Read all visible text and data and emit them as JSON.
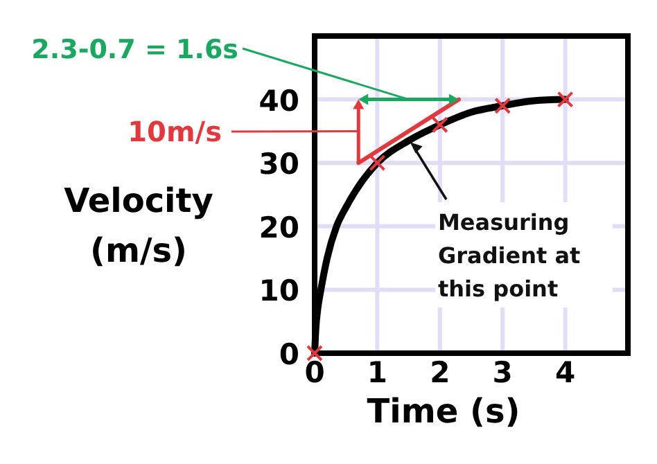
{
  "chart_data": {
    "type": "line",
    "xlabel": "Time (s)",
    "ylabel": "Velocity (m/s)",
    "xlim": [
      0,
      5
    ],
    "ylim": [
      0,
      50
    ],
    "xticks": [
      0,
      1,
      2,
      3,
      4
    ],
    "yticks": [
      0,
      10,
      20,
      30,
      40
    ],
    "grid": true,
    "series": [
      {
        "type": "line",
        "color": "#000000",
        "marker": "none",
        "x": [
          0,
          0.02,
          0.05,
          0.1,
          0.2,
          0.35,
          0.5,
          0.75,
          1,
          1.5,
          2,
          2.5,
          3,
          3.5,
          4
        ],
        "values": [
          0,
          4,
          7,
          10,
          15,
          20,
          23,
          27,
          30,
          33.5,
          36,
          38,
          39,
          39.8,
          40
        ]
      },
      {
        "type": "scatter",
        "color": "#e03a3e",
        "marker": "cross",
        "x": [
          0,
          1,
          2,
          3,
          4
        ],
        "values": [
          0,
          30,
          36,
          39,
          40
        ]
      },
      {
        "type": "line",
        "color": "#e03a3e",
        "marker": "none",
        "x": [
          0.7,
          2.3
        ],
        "values": [
          30,
          40
        ]
      }
    ],
    "annotations": [
      "2.3-0.7 = 1.6s",
      "10m/s",
      {
        "text": "Measuring\nGradient at\nthis point",
        "x": 1.5,
        "y": 33.5
      }
    ]
  }
}
